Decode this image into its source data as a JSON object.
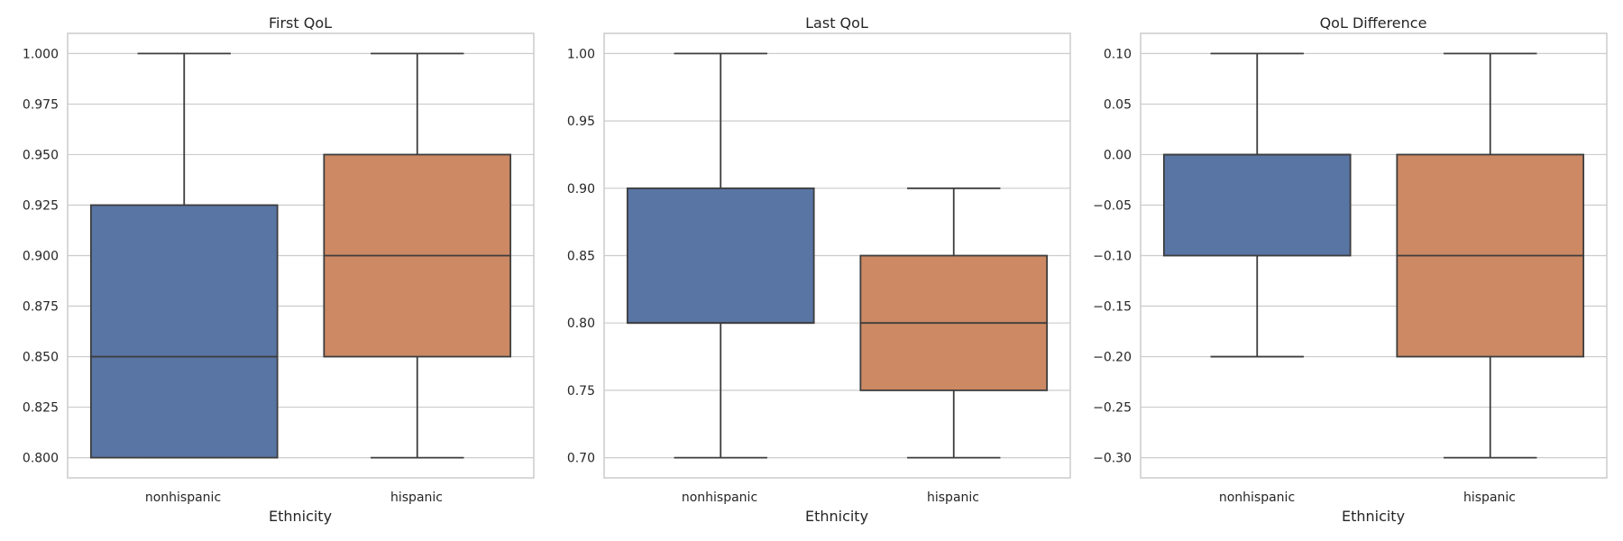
{
  "colors": {
    "nonhispanic": "#5875a4",
    "hispanic": "#cc8963",
    "grid": "#cccccc",
    "spine": "#cccccc",
    "line": "#3d3d3d",
    "text": "#262626"
  },
  "chart_data": [
    {
      "type": "box",
      "title": "First QoL",
      "xlabel": "Ethnicity",
      "ylabel": "",
      "categories": [
        "nonhispanic",
        "hispanic"
      ],
      "ylim": [
        0.79,
        1.01
      ],
      "yticks": [
        0.8,
        0.825,
        0.85,
        0.875,
        0.9,
        0.925,
        0.95,
        0.975,
        1.0
      ],
      "ytick_labels": [
        "0.800",
        "0.825",
        "0.850",
        "0.875",
        "0.900",
        "0.925",
        "0.950",
        "0.975",
        "1.000"
      ],
      "grid": true,
      "boxes": [
        {
          "category": "nonhispanic",
          "whislo": 0.8,
          "q1": 0.8,
          "med": 0.85,
          "q3": 0.925,
          "whishi": 1.0
        },
        {
          "category": "hispanic",
          "whislo": 0.8,
          "q1": 0.85,
          "med": 0.9,
          "q3": 0.95,
          "whishi": 1.0
        }
      ]
    },
    {
      "type": "box",
      "title": "Last QoL",
      "xlabel": "Ethnicity",
      "ylabel": "",
      "categories": [
        "nonhispanic",
        "hispanic"
      ],
      "ylim": [
        0.685,
        1.015
      ],
      "yticks": [
        0.7,
        0.75,
        0.8,
        0.85,
        0.9,
        0.95,
        1.0
      ],
      "ytick_labels": [
        "0.70",
        "0.75",
        "0.80",
        "0.85",
        "0.90",
        "0.95",
        "1.00"
      ],
      "grid": true,
      "boxes": [
        {
          "category": "nonhispanic",
          "whislo": 0.7,
          "q1": 0.8,
          "med": 0.8,
          "q3": 0.9,
          "whishi": 1.0
        },
        {
          "category": "hispanic",
          "whislo": 0.7,
          "q1": 0.75,
          "med": 0.8,
          "q3": 0.85,
          "whishi": 0.9
        }
      ]
    },
    {
      "type": "box",
      "title": "QoL Difference",
      "xlabel": "Ethnicity",
      "ylabel": "",
      "categories": [
        "nonhispanic",
        "hispanic"
      ],
      "ylim": [
        -0.32,
        0.12
      ],
      "yticks": [
        -0.3,
        -0.25,
        -0.2,
        -0.15,
        -0.1,
        -0.05,
        0.0,
        0.05,
        0.1
      ],
      "ytick_labels": [
        "−0.30",
        "−0.25",
        "−0.20",
        "−0.15",
        "−0.10",
        "−0.05",
        "0.00",
        "0.05",
        "0.10"
      ],
      "grid": true,
      "boxes": [
        {
          "category": "nonhispanic",
          "whislo": -0.2,
          "q1": -0.1,
          "med": 0.0,
          "q3": 0.0,
          "whishi": 0.1
        },
        {
          "category": "hispanic",
          "whislo": -0.3,
          "q1": -0.2,
          "med": -0.1,
          "q3": 0.0,
          "whishi": 0.1
        }
      ]
    }
  ]
}
